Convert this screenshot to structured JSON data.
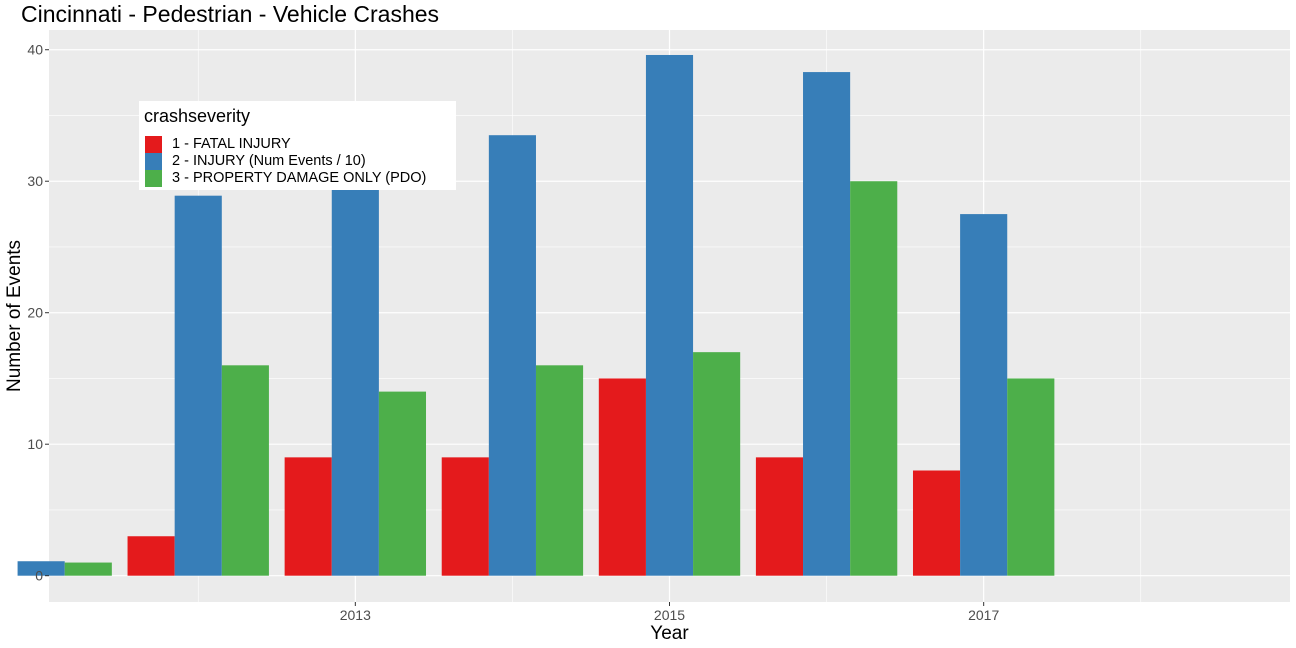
{
  "chart_data": {
    "type": "bar",
    "title": "Cincinnati - Pedestrian - Vehicle Crashes",
    "xlabel": "Year",
    "ylabel": "Number of Events",
    "x_ticks": [
      2013,
      2015,
      2017
    ],
    "y_ticks": [
      0,
      10,
      20,
      30,
      40
    ],
    "xlim": [
      2011.05,
      2018.95
    ],
    "ylim": [
      -2,
      41.5
    ],
    "grid": true,
    "legend_title": "crashseverity",
    "legend_position": "top-left",
    "series": [
      {
        "name": "1 - FATAL INJURY",
        "color": "#E41A1C",
        "points": [
          {
            "year": 2012,
            "value": 3
          },
          {
            "year": 2013,
            "value": 9
          },
          {
            "year": 2014,
            "value": 9
          },
          {
            "year": 2015,
            "value": 15
          },
          {
            "year": 2016,
            "value": 9
          },
          {
            "year": 2017,
            "value": 8
          }
        ]
      },
      {
        "name": "2 - INJURY (Num Events / 10)",
        "color": "#377EB8",
        "points": [
          {
            "year": 2011,
            "value": 1.1
          },
          {
            "year": 2012,
            "value": 28.9
          },
          {
            "year": 2013,
            "value": 31.9
          },
          {
            "year": 2014,
            "value": 33.5
          },
          {
            "year": 2015,
            "value": 39.6
          },
          {
            "year": 2016,
            "value": 38.3
          },
          {
            "year": 2017,
            "value": 27.5
          }
        ]
      },
      {
        "name": "3 - PROPERTY DAMAGE ONLY (PDO)",
        "color": "#4DAF4A",
        "points": [
          {
            "year": 2011,
            "value": 1
          },
          {
            "year": 2012,
            "value": 16
          },
          {
            "year": 2013,
            "value": 14
          },
          {
            "year": 2014,
            "value": 16
          },
          {
            "year": 2015,
            "value": 17
          },
          {
            "year": 2016,
            "value": 30
          },
          {
            "year": 2017,
            "value": 15
          }
        ]
      }
    ]
  }
}
